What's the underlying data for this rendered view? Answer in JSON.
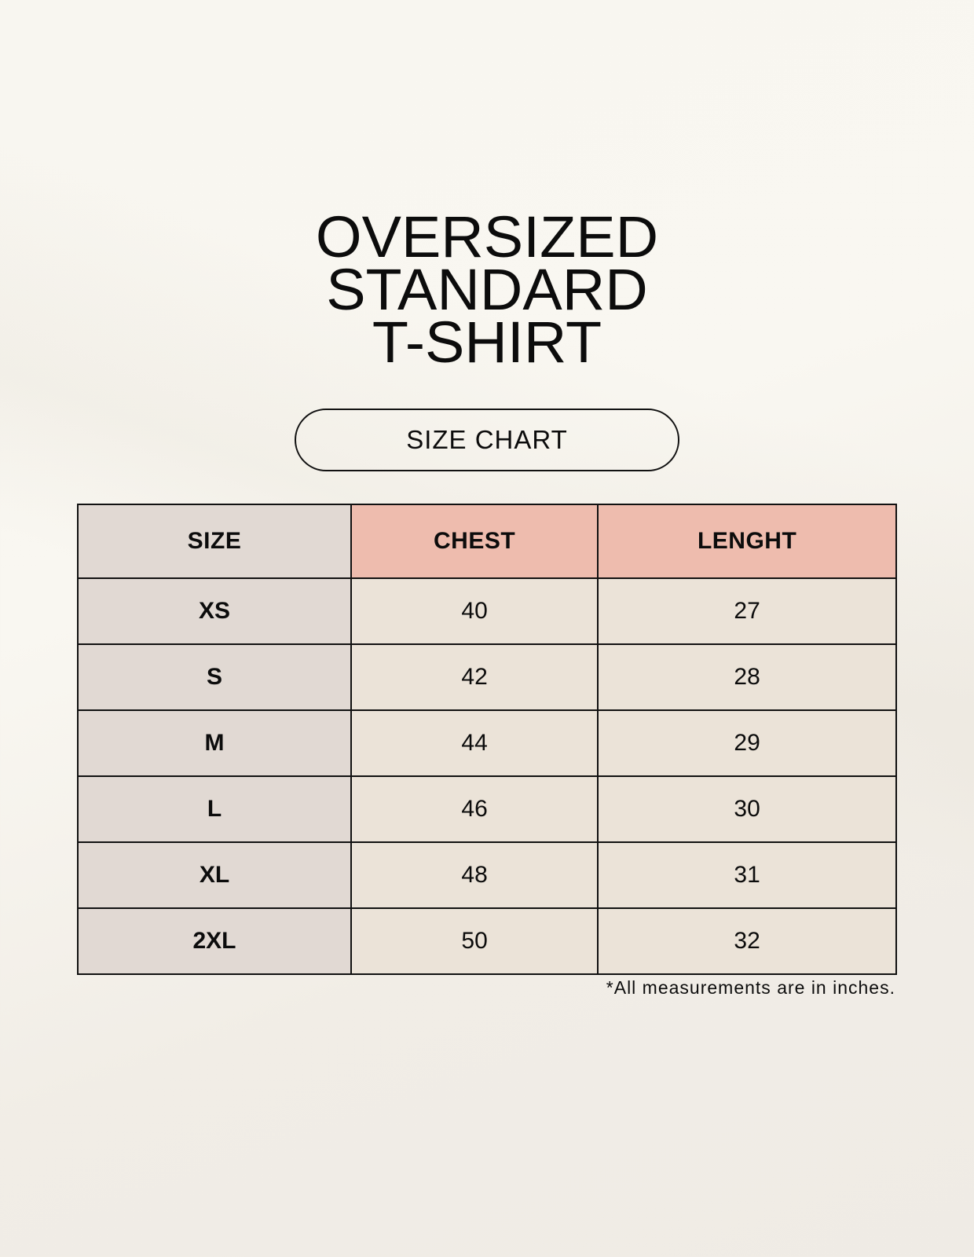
{
  "title_lines": [
    "OVERSIZED",
    "STANDARD",
    "T-SHIRT"
  ],
  "badge": "SIZE CHART",
  "table": {
    "headers": [
      "SIZE",
      "CHEST",
      "LENGHT"
    ],
    "rows": [
      [
        "XS",
        "40",
        "27"
      ],
      [
        "S",
        "42",
        "28"
      ],
      [
        "M",
        "44",
        "29"
      ],
      [
        "L",
        "46",
        "30"
      ],
      [
        "XL",
        "48",
        "31"
      ],
      [
        "2XL",
        "50",
        "32"
      ]
    ]
  },
  "footnote": "*All measurements are in inches.",
  "colors": {
    "header_accent": "#eebcae",
    "size_column": "#e1d9d3",
    "cell": "#ebe3d8"
  }
}
